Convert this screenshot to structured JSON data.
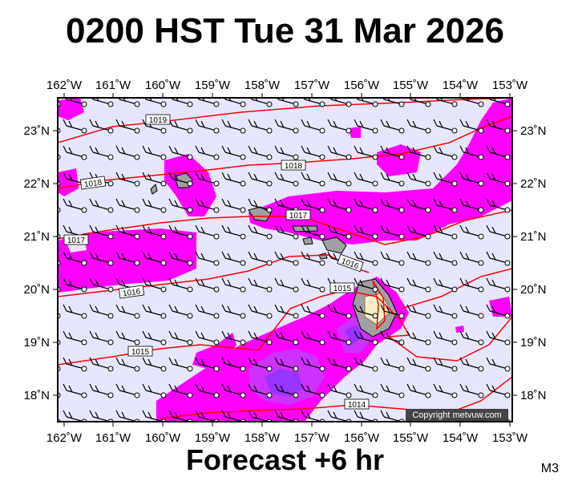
{
  "title": "0200 HST Tue 31 Mar 2026",
  "subtitle": "Forecast +6 hr",
  "model": "M3",
  "copyright": "Copyright metvuw.com",
  "lon_labels": [
    "162˚W",
    "161˚W",
    "160˚W",
    "159˚W",
    "158˚W",
    "157˚W",
    "156˚W",
    "155˚W",
    "154˚W",
    "153˚W"
  ],
  "lat_labels": [
    "23˚N",
    "22˚N",
    "21˚N",
    "20˚N",
    "19˚N",
    "18˚N"
  ],
  "isobar_labels": [
    "1019",
    "1018",
    "1018",
    "1017",
    "1017",
    "1016",
    "1016",
    "1015",
    "1015",
    "1014"
  ],
  "colors": {
    "ocean": "#e6e6ff",
    "rain_light": "#ff00ff",
    "rain_moderate": "#cc33ff",
    "rain_heavy": "#9933ff",
    "isobar": "#ff0000",
    "land": "#a0a0a0"
  }
}
